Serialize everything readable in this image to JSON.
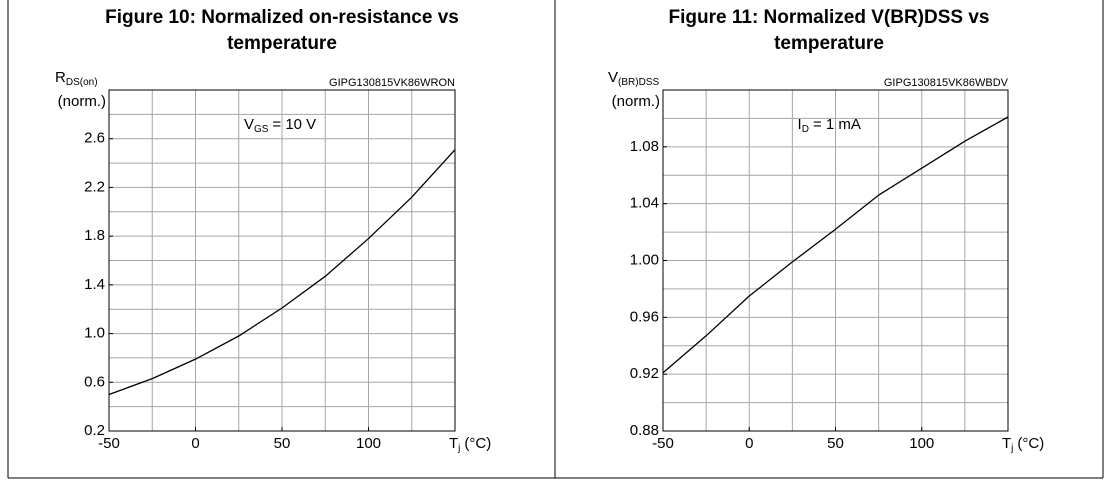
{
  "chart_data": [
    {
      "type": "line",
      "title": [
        "Figure 10: Normalized on-resistance vs",
        "temperature"
      ],
      "code": "GIPG130815VK86WRON",
      "ylabel": {
        "main": "R",
        "sub": "DS(on)",
        "unit": "(norm.)"
      },
      "xlabel": {
        "main": "T",
        "sub": "j",
        "unit": "(°C)"
      },
      "annotation": {
        "main": "V",
        "sub": "GS",
        "text": "= 10 V"
      },
      "x": [
        -50,
        -25,
        0,
        25,
        50,
        75,
        100,
        125,
        150
      ],
      "series": [
        {
          "color": "#000000",
          "values": [
            0.5,
            0.63,
            0.79,
            0.98,
            1.21,
            1.47,
            1.78,
            2.12,
            2.51
          ]
        }
      ],
      "xlim": [
        -50,
        150
      ],
      "ylim": [
        0.2,
        3.0
      ],
      "xticks": [
        -50,
        0,
        50,
        100
      ],
      "yticks": [
        0.2,
        0.6,
        {
          "value": 1,
          "label": "1.0"
        },
        1.4,
        1.8,
        2.2,
        2.6
      ],
      "xgrid": [
        -25,
        0,
        25,
        50,
        75,
        100,
        125
      ],
      "ygrid": [
        0.4,
        0.6,
        0.8,
        1,
        1.2,
        1.4,
        1.6,
        1.8,
        2,
        2.2,
        2.4,
        2.6,
        2.8
      ]
    },
    {
      "type": "line",
      "title": [
        "Figure 11: Normalized V(BR)DSS vs",
        "temperature"
      ],
      "code": "GIPG130815VK86WBDV",
      "ylabel": {
        "main": "V",
        "sub": "(BR)DSS",
        "unit": "(norm.)"
      },
      "xlabel": {
        "main": "T",
        "sub": "j",
        "unit": "(°C)"
      },
      "annotation": {
        "main": "I",
        "sub": "D",
        "text": "= 1 mA"
      },
      "x": [
        -50,
        -25,
        0,
        25,
        50,
        75,
        100,
        125,
        150
      ],
      "series": [
        {
          "color": "#000000",
          "values": [
            0.921,
            0.947,
            0.975,
            0.999,
            1.022,
            1.046,
            1.065,
            1.084,
            1.101
          ]
        }
      ],
      "xlim": [
        -50,
        150
      ],
      "ylim": [
        0.88,
        1.12
      ],
      "xticks": [
        -50,
        0,
        50,
        100
      ],
      "yticks": [
        0.88,
        0.92,
        0.96,
        {
          "value": 1,
          "label": "1.00"
        },
        1.04,
        1.08
      ],
      "xgrid": [
        -25,
        0,
        25,
        50,
        75,
        100,
        125
      ],
      "ygrid": [
        0.9,
        0.92,
        0.94,
        0.96,
        0.98,
        1,
        1.02,
        1.04,
        1.06,
        1.08,
        1.1
      ]
    }
  ]
}
